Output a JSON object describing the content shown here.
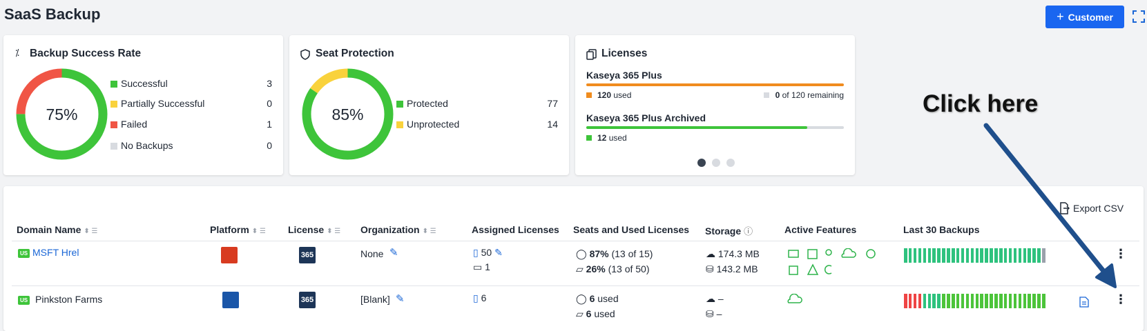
{
  "header": {
    "title": "SaaS Backup",
    "customer_button": "Customer"
  },
  "cards": {
    "backup": {
      "title": "Backup Success Rate",
      "center": "75%",
      "legend": [
        {
          "label": "Successful",
          "value": 3,
          "color": "#3ec43a"
        },
        {
          "label": "Partially Successful",
          "value": 0,
          "color": "#f9d23c"
        },
        {
          "label": "Failed",
          "value": 1,
          "color": "#f05545"
        },
        {
          "label": "No Backups",
          "value": 0,
          "color": "#d8dbe0"
        }
      ]
    },
    "seat": {
      "title": "Seat Protection",
      "center": "85%",
      "legend": [
        {
          "label": "Protected",
          "value": 77,
          "color": "#3ec43a"
        },
        {
          "label": "Unprotected",
          "value": 14,
          "color": "#f9d23c"
        }
      ]
    },
    "licenses": {
      "title": "Licenses",
      "items": [
        {
          "name": "Kaseya 365 Plus",
          "used": "120",
          "used_suffix": "used",
          "remaining": "0",
          "remaining_suffix": "of 120 remaining"
        },
        {
          "name": "Kaseya 365 Plus Archived",
          "used": "12",
          "used_suffix": "used"
        }
      ]
    }
  },
  "table": {
    "export_label": "Export CSV",
    "columns": [
      "Domain Name",
      "Platform",
      "License",
      "Organization",
      "Assigned Licenses",
      "Seats and Used Licenses",
      "Storage",
      "Active Features",
      "Last 30 Backups"
    ],
    "rows": [
      {
        "region": "US",
        "domain": "MSFT Hrel",
        "license_badge": "365",
        "organization": "None",
        "assigned": [
          "50",
          "1"
        ],
        "seats": [
          {
            "value": "87%",
            "detail": "(13 of 15)"
          },
          {
            "value": "26%",
            "detail": "(13 of 50)"
          }
        ],
        "storage": [
          "174.3 MB",
          "143.2 MB"
        ]
      },
      {
        "region": "US",
        "domain": "Pinkston Farms",
        "license_badge": "365",
        "organization": "[Blank]",
        "assigned": [
          "6"
        ],
        "seats": [
          {
            "value": "6",
            "detail": "used"
          },
          {
            "value": "6",
            "detail": "used"
          }
        ],
        "storage": [
          "–",
          "–"
        ]
      }
    ]
  },
  "annotation": "Click here"
}
